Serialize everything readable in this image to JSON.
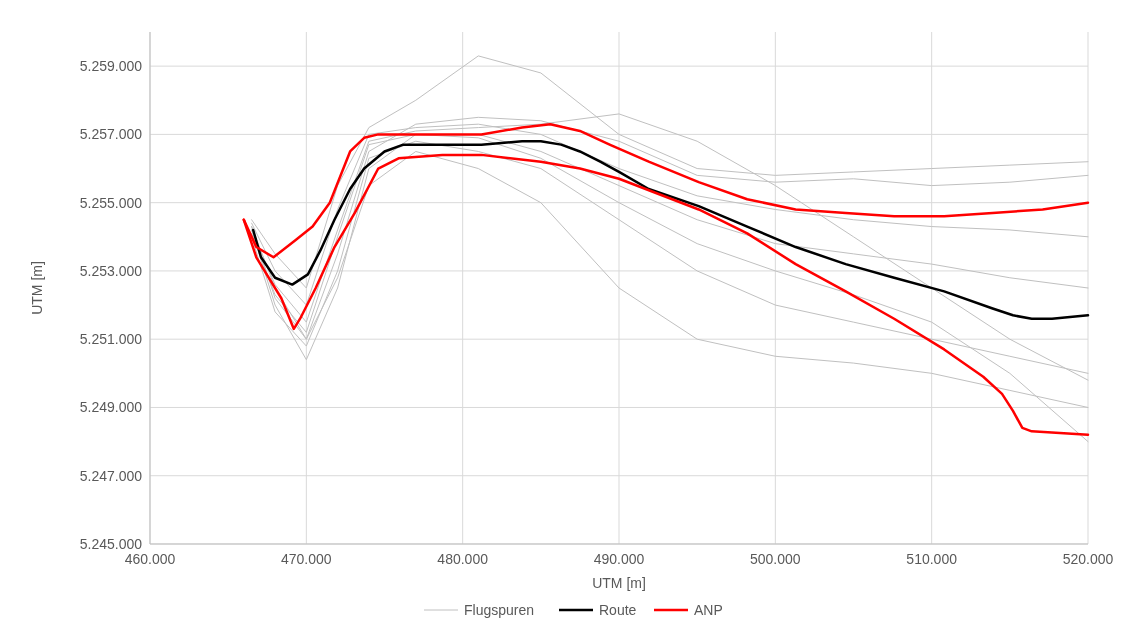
{
  "chart_data": {
    "type": "line",
    "xlabel": "UTM [m]",
    "ylabel": "UTM [m]",
    "xlim": [
      460000,
      520000
    ],
    "ylim": [
      5245000,
      5260000
    ],
    "xticks": [
      {
        "value": 460000,
        "label": "460.000"
      },
      {
        "value": 470000,
        "label": "470.000"
      },
      {
        "value": 480000,
        "label": "480.000"
      },
      {
        "value": 490000,
        "label": "490.000"
      },
      {
        "value": 500000,
        "label": "500.000"
      },
      {
        "value": 510000,
        "label": "510.000"
      },
      {
        "value": 520000,
        "label": "520.000"
      }
    ],
    "yticks": [
      {
        "value": 5245000,
        "label": "5.245.000"
      },
      {
        "value": 5247000,
        "label": "5.247.000"
      },
      {
        "value": 5249000,
        "label": "5.249.000"
      },
      {
        "value": 5251000,
        "label": "5.251.000"
      },
      {
        "value": 5253000,
        "label": "5.253.000"
      },
      {
        "value": 5255000,
        "label": "5.255.000"
      },
      {
        "value": 5257000,
        "label": "5.257.000"
      },
      {
        "value": 5259000,
        "label": "5.259.000"
      }
    ],
    "grid": true,
    "legend": "bottom",
    "line_style": "solid",
    "marker": "none",
    "series": [
      {
        "name": "Flugspuren",
        "color": "#c0c0c0",
        "x": [
          466500,
          468000,
          470000,
          472000,
          474000,
          477000,
          481000,
          485000,
          490000,
          495000,
          500000,
          505000,
          510000,
          515000,
          520000
        ],
        "values": [
          5254500,
          5253500,
          5252500,
          5255500,
          5257200,
          5258000,
          5259300,
          5258800,
          5257000,
          5256000,
          5255800,
          5255900,
          5256000,
          5256100,
          5256200
        ]
      },
      {
        "color": "#c0c0c0",
        "x": [
          466500,
          468000,
          470000,
          472000,
          474000,
          477000,
          481000,
          485000,
          490000,
          495000,
          500000,
          505000,
          510000,
          515000,
          520000
        ],
        "values": [
          5254300,
          5252500,
          5251000,
          5253500,
          5256500,
          5257300,
          5257500,
          5257400,
          5256800,
          5255800,
          5255600,
          5255700,
          5255500,
          5255600,
          5255800
        ]
      },
      {
        "color": "#c0c0c0",
        "x": [
          466500,
          468000,
          470000,
          472000,
          474000,
          477000,
          481000,
          485000,
          490000,
          495000,
          500000,
          505000,
          510000,
          515000,
          520000
        ],
        "values": [
          5254200,
          5252000,
          5250400,
          5252500,
          5256000,
          5257000,
          5257000,
          5256500,
          5255500,
          5254500,
          5253800,
          5253500,
          5253200,
          5252800,
          5252500
        ]
      },
      {
        "color": "#c0c0c0",
        "x": [
          466500,
          468000,
          470000,
          472000,
          474000,
          477000,
          481000,
          485000,
          490000,
          495000,
          500000,
          505000,
          510000,
          515000,
          520000
        ],
        "values": [
          5254000,
          5251800,
          5250800,
          5253000,
          5256300,
          5256800,
          5256500,
          5256000,
          5254500,
          5253000,
          5252000,
          5251500,
          5251000,
          5250500,
          5250000
        ]
      },
      {
        "color": "#c0c0c0",
        "x": [
          466500,
          468000,
          470000,
          472000,
          474000,
          477000,
          481000,
          485000,
          490000,
          495000,
          500000,
          505000,
          510000,
          515000,
          520000
        ],
        "values": [
          5254100,
          5252300,
          5251200,
          5254000,
          5256700,
          5257000,
          5256900,
          5256300,
          5255000,
          5253800,
          5253000,
          5252300,
          5251500,
          5250000,
          5248000
        ]
      },
      {
        "color": "#c0c0c0",
        "x": [
          466500,
          468000,
          470000,
          472000,
          474000,
          477000,
          481000,
          485000,
          490000,
          495000,
          500000,
          505000,
          510000,
          515000,
          520000
        ],
        "values": [
          5254400,
          5253000,
          5252000,
          5254800,
          5257000,
          5257200,
          5257300,
          5257000,
          5256000,
          5255200,
          5254800,
          5254500,
          5254300,
          5254200,
          5254000
        ]
      },
      {
        "color": "#c0c0c0",
        "x": [
          466500,
          468000,
          470000,
          472000,
          474000,
          477000,
          481000,
          485000,
          490000,
          495000,
          500000,
          505000,
          510000,
          515000,
          520000
        ],
        "values": [
          5254300,
          5252200,
          5251000,
          5252800,
          5255500,
          5256500,
          5256000,
          5255000,
          5252500,
          5251000,
          5250500,
          5250300,
          5250000,
          5249500,
          5249000
        ]
      },
      {
        "color": "#c0c0c0",
        "x": [
          466500,
          468000,
          470000,
          472000,
          474000,
          477000,
          481000,
          485000,
          490000,
          495000,
          500000,
          505000,
          510000,
          515000,
          520000
        ],
        "values": [
          5254200,
          5252600,
          5251500,
          5254200,
          5256800,
          5257100,
          5257200,
          5257300,
          5257600,
          5256800,
          5255500,
          5254000,
          5252500,
          5251000,
          5249800
        ]
      },
      {
        "name": "Route",
        "color": "#000000",
        "x": [
          466600,
          467100,
          468000,
          469100,
          470100,
          470900,
          471800,
          472800,
          473700,
          475000,
          476200,
          478700,
          481200,
          483800,
          485000,
          486300,
          487500,
          488800,
          490000,
          491900,
          495100,
          498200,
          501300,
          504500,
          507600,
          510800,
          513900,
          515200,
          516400,
          517700,
          520000
        ],
        "values": [
          5254200,
          5253400,
          5252800,
          5252600,
          5252900,
          5253600,
          5254500,
          5255400,
          5256000,
          5256500,
          5256700,
          5256700,
          5256700,
          5256800,
          5256800,
          5256700,
          5256500,
          5256200,
          5255900,
          5255400,
          5254900,
          5254300,
          5253700,
          5253200,
          5252800,
          5252400,
          5251900,
          5251700,
          5251600,
          5251600,
          5251700
        ]
      },
      {
        "name": "ANP",
        "color": "#ff0000",
        "x": [
          466000,
          466800,
          467900,
          469300,
          470400,
          471500,
          472800,
          473700,
          474600,
          476200,
          478700,
          481200,
          483800,
          485600,
          487500,
          489400,
          491900,
          495100,
          498200,
          501300,
          504500,
          507600,
          510800,
          513900,
          517100,
          520000
        ],
        "values": [
          5254500,
          5253700,
          5253400,
          5253900,
          5254300,
          5255000,
          5256500,
          5256900,
          5257000,
          5257000,
          5257000,
          5257000,
          5257200,
          5257300,
          5257100,
          5256700,
          5256200,
          5255600,
          5255100,
          5254800,
          5254700,
          5254600,
          5254600,
          5254700,
          5254800,
          5255000
        ]
      },
      {
        "color": "#ff0000",
        "x": [
          466000,
          466800,
          468400,
          469200,
          469600,
          470600,
          471800,
          473100,
          474600,
          475900,
          478700,
          481200,
          485000,
          487500,
          490000,
          495100,
          498200,
          501300,
          504500,
          507600,
          510800,
          513300,
          514500,
          515200,
          515800,
          516400,
          520000
        ],
        "values": [
          5254500,
          5253400,
          5252200,
          5251300,
          5251600,
          5252500,
          5253700,
          5254700,
          5256000,
          5256300,
          5256400,
          5256400,
          5256200,
          5256000,
          5255700,
          5254800,
          5254100,
          5253200,
          5252400,
          5251600,
          5250700,
          5249900,
          5249400,
          5248900,
          5248400,
          5248300,
          5248200
        ]
      }
    ]
  }
}
